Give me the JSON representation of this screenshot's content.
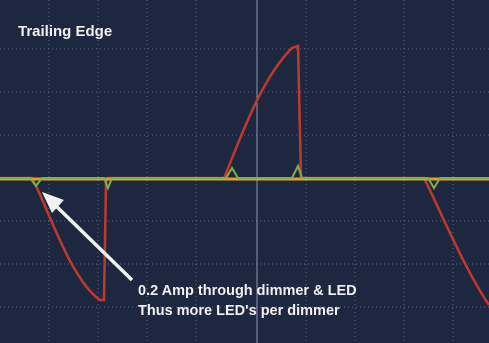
{
  "header": {
    "title": "Trailing Edge"
  },
  "annotation": {
    "lines": [
      "0.2 Amp through dimmer &  LED",
      "Thus more LED's per dimmer"
    ]
  }
}
